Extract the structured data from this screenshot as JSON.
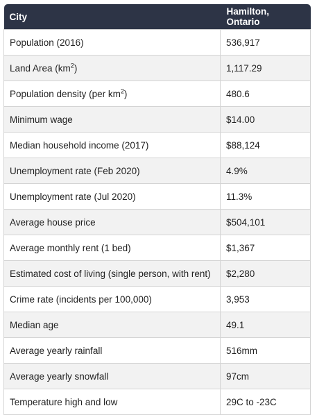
{
  "header": {
    "col1": "City",
    "col2": "Hamilton, Ontario"
  },
  "rows": [
    {
      "label": "Population (2016)",
      "value": "536,917"
    },
    {
      "label": "Land Area (km",
      "sup": "2",
      "suffix": ")",
      "value": "1,117.29"
    },
    {
      "label": "Population density (per km",
      "sup": "2",
      "suffix": ")",
      "value": "480.6"
    },
    {
      "label": "Minimum wage",
      "value": "$14.00"
    },
    {
      "label": "Median household income (2017)",
      "value": "$88,124"
    },
    {
      "label": "Unemployment rate (Feb 2020)",
      "value": "4.9%"
    },
    {
      "label": "Unemployment rate (Jul 2020)",
      "value": "11.3%"
    },
    {
      "label": "Average house price",
      "value": "$504,101"
    },
    {
      "label": "Average monthly rent (1 bed)",
      "value": "$1,367"
    },
    {
      "label": "Estimated cost of living (single person, with rent)",
      "value": "$2,280"
    },
    {
      "label": "Crime rate (incidents per 100,000)",
      "value": "3,953"
    },
    {
      "label": "Median age",
      "value": "49.1"
    },
    {
      "label": "Average yearly rainfall",
      "value": "516mm"
    },
    {
      "label": "Average yearly snowfall",
      "value": "97cm"
    },
    {
      "label": "Temperature high and low",
      "value": "29C to -23C"
    }
  ]
}
